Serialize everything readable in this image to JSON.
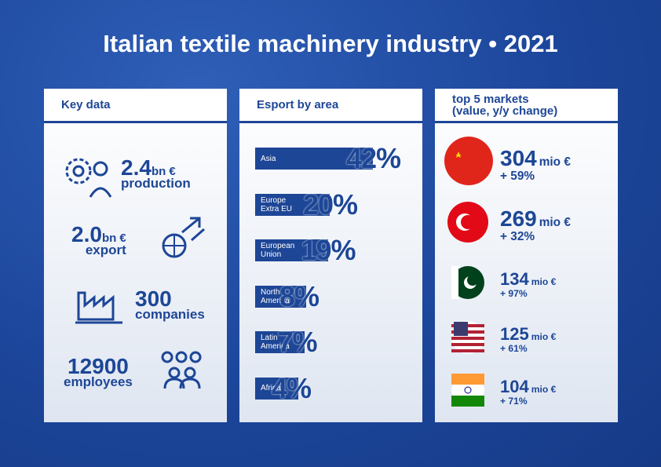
{
  "header": {
    "title": "Italian textile machinery industry • 2021"
  },
  "key_data": {
    "title": "Key data",
    "items": [
      {
        "value": "2.4",
        "unit": "bn €",
        "label": "production"
      },
      {
        "value": "2.0",
        "unit": "bn €",
        "label": "export"
      },
      {
        "value": "300",
        "label": "companies"
      },
      {
        "value": "12900",
        "label": "employees"
      }
    ]
  },
  "chart_data": {
    "type": "bar",
    "title": "Esport by area",
    "categories": [
      "Asia",
      "Europe Extra EU",
      "European Union",
      "North America",
      "Latin America",
      "Africa"
    ],
    "values": [
      42,
      20,
      19,
      8,
      7,
      4
    ],
    "value_labels": [
      "42%",
      "20%",
      "19%",
      "8%",
      "7%",
      "4%"
    ],
    "color": "#1d4696"
  },
  "markets": {
    "title": "top 5 markets",
    "subtitle": "(value, y/y change)",
    "items": [
      {
        "value": "304",
        "unit": "mio €",
        "change": "+ 59%"
      },
      {
        "value": "269",
        "unit": "mio €",
        "change": "+ 32%"
      },
      {
        "value": "134",
        "unit": "mio €",
        "change": "+ 97%"
      },
      {
        "value": "125",
        "unit": "mio €",
        "change": "+ 61%"
      },
      {
        "value": "104",
        "unit": "mio €",
        "change": "+ 71%"
      }
    ]
  }
}
